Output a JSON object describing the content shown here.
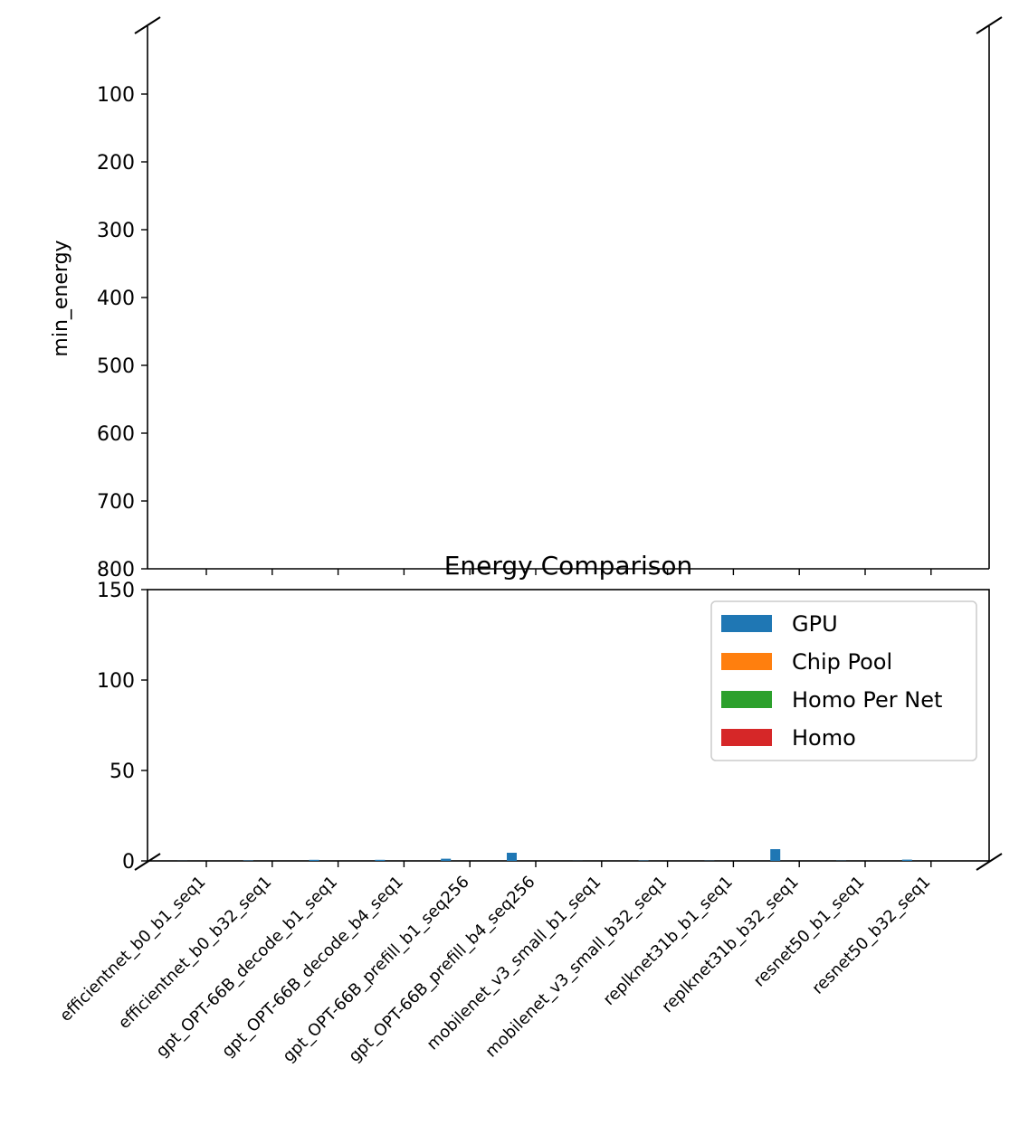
{
  "chart_data": {
    "type": "bar",
    "title": "Energy Comparison",
    "ylabel": "min_energy",
    "xlabel": "",
    "broken_axis": true,
    "upper_panel": {
      "ylim": [
        0,
        800
      ],
      "inverted": true,
      "yticks": [
        100,
        200,
        300,
        400,
        500,
        600,
        700,
        800
      ]
    },
    "lower_panel": {
      "ylim": [
        0,
        150
      ],
      "yticks": [
        0,
        50,
        100,
        150
      ]
    },
    "legend_position": "upper-right",
    "categories": [
      "efficientnet_b0_b1_seq1",
      "efficientnet_b0_b32_seq1",
      "gpt_OPT-66B_decode_b1_seq1",
      "gpt_OPT-66B_decode_b4_seq1",
      "gpt_OPT-66B_prefill_b1_seq256",
      "gpt_OPT-66B_prefill_b4_seq256",
      "mobilenet_v3_small_b1_seq1",
      "mobilenet_v3_small_b32_seq1",
      "replknet31b_b1_seq1",
      "replknet31b_b32_seq1",
      "resnet50_b1_seq1",
      "resnet50_b32_seq1"
    ],
    "series": [
      {
        "name": "GPU",
        "color": "#1f77b4",
        "values": [
          0.05,
          0.2,
          0.6,
          0.6,
          1.2,
          4.5,
          0.05,
          0.2,
          0.1,
          6.5,
          0.1,
          0.7
        ]
      },
      {
        "name": "Chip Pool",
        "color": "#ff7f0e",
        "values": [
          0,
          0,
          0,
          0,
          0,
          0,
          0,
          0,
          0,
          0,
          0,
          0
        ]
      },
      {
        "name": "Homo Per Net",
        "color": "#2ca02c",
        "values": [
          0,
          0,
          0,
          0,
          0,
          0,
          0,
          0,
          0,
          0,
          0,
          0
        ]
      },
      {
        "name": "Homo",
        "color": "#d62728",
        "values": [
          0,
          0,
          0,
          0,
          0,
          0,
          0,
          0,
          0,
          0,
          0,
          0
        ]
      }
    ]
  }
}
